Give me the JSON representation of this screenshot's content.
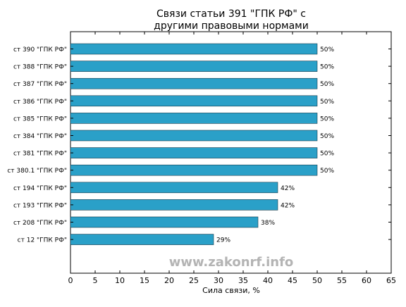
{
  "chart_data": {
    "type": "bar",
    "orientation": "horizontal",
    "title": "Связи статьи 391 \"ГПК РФ\" с\nдругими правовыми нормами",
    "xlabel": "Сила связи, %",
    "ylabel": "",
    "xlim": [
      0,
      65
    ],
    "xticks": [
      "0",
      "5",
      "10",
      "15",
      "20",
      "25",
      "30",
      "35",
      "40",
      "45",
      "50",
      "55",
      "60",
      "65"
    ],
    "categories": [
      "ст 390 \"ГПК РФ\"",
      "ст 388 \"ГПК РФ\"",
      "ст 387 \"ГПК РФ\"",
      "ст 386 \"ГПК РФ\"",
      "ст 385 \"ГПК РФ\"",
      "ст 384 \"ГПК РФ\"",
      "ст 381 \"ГПК РФ\"",
      "ст 380.1 \"ГПК РФ\"",
      "ст 194 \"ГПК РФ\"",
      "ст 193 \"ГПК РФ\"",
      "ст 208 \"ГПК РФ\"",
      "ст 12 \"ГПК РФ\""
    ],
    "values": [
      50,
      50,
      50,
      50,
      50,
      50,
      50,
      50,
      42,
      42,
      38,
      29
    ],
    "value_labels": [
      "50%",
      "50%",
      "50%",
      "50%",
      "50%",
      "50%",
      "50%",
      "50%",
      "42%",
      "42%",
      "38%",
      "29%"
    ],
    "grid": false,
    "bar_color": "#2aa0c8",
    "bar_edge_color": "#1a3a4a"
  },
  "watermark": "www.zakonrf.info"
}
